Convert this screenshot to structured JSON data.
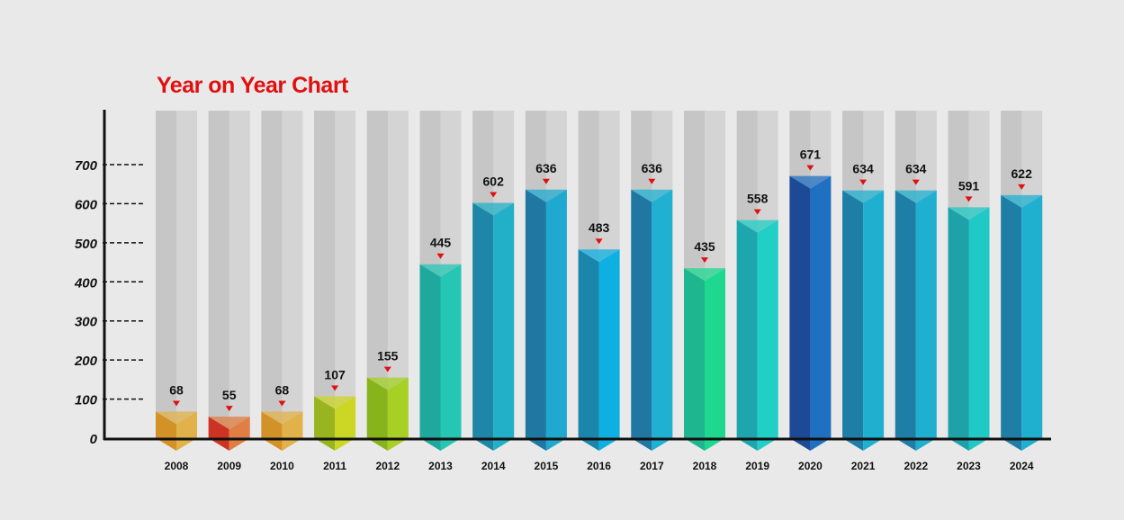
{
  "chart_data": {
    "type": "bar",
    "title": "Year on Year Chart",
    "xlabel": "",
    "ylabel": "",
    "ylim": [
      0,
      700
    ],
    "yticks": [
      "0",
      "100",
      "200",
      "300",
      "400",
      "500",
      "600",
      "700"
    ],
    "categories": [
      "2008",
      "2009",
      "2010",
      "2011",
      "2012",
      "2013",
      "2014",
      "2015",
      "2016",
      "2017",
      "2018",
      "2019",
      "2020",
      "2021",
      "2022",
      "2023",
      "2024"
    ],
    "values": [
      68,
      55,
      68,
      107,
      155,
      445,
      602,
      636,
      483,
      636,
      435,
      558,
      671,
      634,
      634,
      591,
      622
    ],
    "colors": [
      [
        "#d39228",
        "#e2b24a"
      ],
      [
        "#cc3322",
        "#e07e44"
      ],
      [
        "#d39228",
        "#e2b24a"
      ],
      [
        "#98b41e",
        "#ccd624"
      ],
      [
        "#86b41a",
        "#a6d024"
      ],
      [
        "#1fa89e",
        "#26c6b4"
      ],
      [
        "#1e86a6",
        "#21b0c8"
      ],
      [
        "#2078a2",
        "#1fa8d0"
      ],
      [
        "#1a86ac",
        "#0eb0e2"
      ],
      [
        "#2078a2",
        "#20b0d2"
      ],
      [
        "#1eb68e",
        "#1fd890"
      ],
      [
        "#1ea6ae",
        "#20cfc6"
      ],
      [
        "#1c4a96",
        "#2070c2"
      ],
      [
        "#1f7ea6",
        "#1fb0d0"
      ],
      [
        "#1f7ea6",
        "#1fb0d0"
      ],
      [
        "#1ea2a8",
        "#20c8c6"
      ],
      [
        "#1f7ea6",
        "#1fb0d0"
      ]
    ],
    "marker_color": "#e01010",
    "background_column_color": "#d2d2d2"
  }
}
